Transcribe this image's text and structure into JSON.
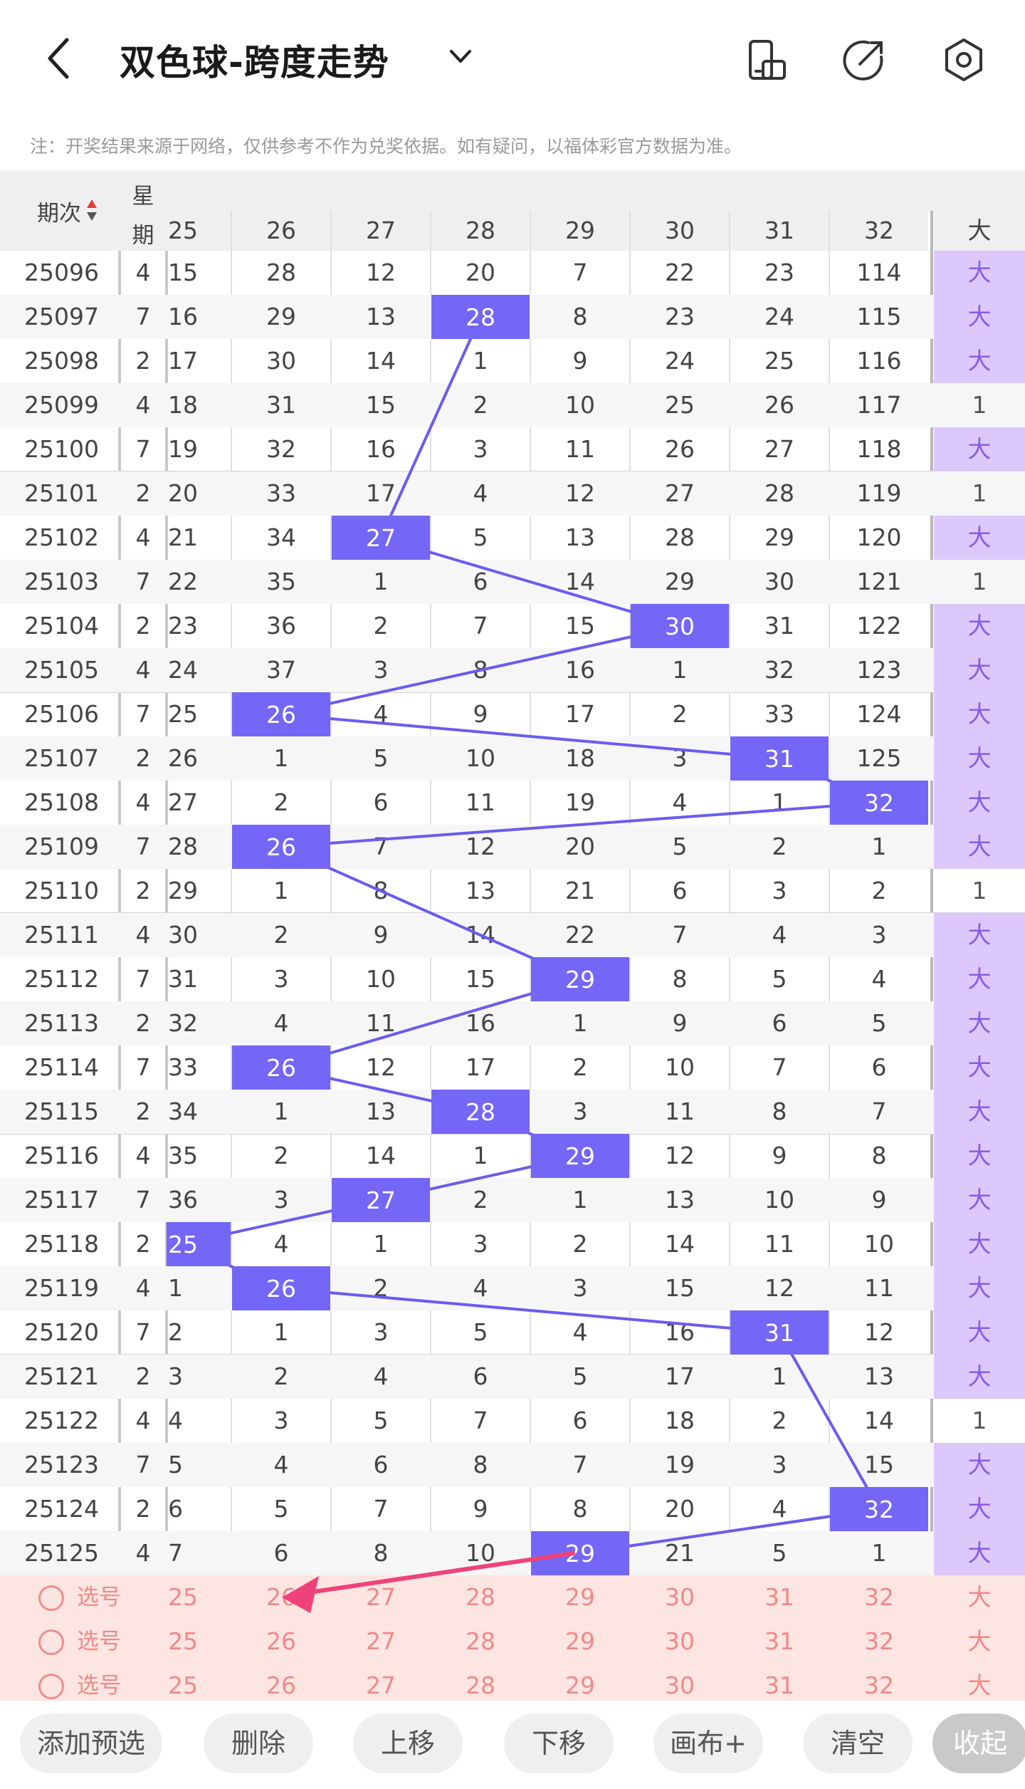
{
  "header": {
    "title": "双色球-跨度走势",
    "note": "注：开奖结果来源于网络，仅供参考不作为兑奖依据。如有疑问，以福体彩官方数据为准。"
  },
  "table": {
    "issue_header": "期次",
    "week_header_1": "星",
    "week_header_2": "期",
    "span_columns": [
      "25",
      "26",
      "27",
      "28",
      "29",
      "30",
      "31",
      "32"
    ],
    "big_header": "大",
    "big_label": "大",
    "rows": [
      {
        "issue": "25096",
        "week": "4",
        "cells": [
          "15",
          "28",
          "12",
          "20",
          "7",
          "22",
          "23",
          "114"
        ],
        "hit": null,
        "big": "大"
      },
      {
        "issue": "25097",
        "week": "7",
        "cells": [
          "16",
          "29",
          "13",
          "28",
          "8",
          "23",
          "24",
          "115"
        ],
        "hit": 3,
        "big": "大"
      },
      {
        "issue": "25098",
        "week": "2",
        "cells": [
          "17",
          "30",
          "14",
          "1",
          "9",
          "24",
          "25",
          "116"
        ],
        "hit": null,
        "big": "大"
      },
      {
        "issue": "25099",
        "week": "4",
        "cells": [
          "18",
          "31",
          "15",
          "2",
          "10",
          "25",
          "26",
          "117"
        ],
        "hit": null,
        "big": "1"
      },
      {
        "issue": "25100",
        "week": "7",
        "cells": [
          "19",
          "32",
          "16",
          "3",
          "11",
          "26",
          "27",
          "118"
        ],
        "hit": null,
        "big": "大"
      },
      {
        "issue": "25101",
        "week": "2",
        "cells": [
          "20",
          "33",
          "17",
          "4",
          "12",
          "27",
          "28",
          "119"
        ],
        "hit": null,
        "big": "1"
      },
      {
        "issue": "25102",
        "week": "4",
        "cells": [
          "21",
          "34",
          "27",
          "5",
          "13",
          "28",
          "29",
          "120"
        ],
        "hit": 2,
        "big": "大"
      },
      {
        "issue": "25103",
        "week": "7",
        "cells": [
          "22",
          "35",
          "1",
          "6",
          "14",
          "29",
          "30",
          "121"
        ],
        "hit": null,
        "big": "1"
      },
      {
        "issue": "25104",
        "week": "2",
        "cells": [
          "23",
          "36",
          "2",
          "7",
          "15",
          "30",
          "31",
          "122"
        ],
        "hit": 5,
        "big": "大"
      },
      {
        "issue": "25105",
        "week": "4",
        "cells": [
          "24",
          "37",
          "3",
          "8",
          "16",
          "1",
          "32",
          "123"
        ],
        "hit": null,
        "big": "大"
      },
      {
        "issue": "25106",
        "week": "7",
        "cells": [
          "25",
          "26",
          "4",
          "9",
          "17",
          "2",
          "33",
          "124"
        ],
        "hit": 1,
        "big": "大"
      },
      {
        "issue": "25107",
        "week": "2",
        "cells": [
          "26",
          "1",
          "5",
          "10",
          "18",
          "3",
          "31",
          "125"
        ],
        "hit": 6,
        "big": "大"
      },
      {
        "issue": "25108",
        "week": "4",
        "cells": [
          "27",
          "2",
          "6",
          "11",
          "19",
          "4",
          "1",
          "32"
        ],
        "hit": 7,
        "big": "大"
      },
      {
        "issue": "25109",
        "week": "7",
        "cells": [
          "28",
          "26",
          "7",
          "12",
          "20",
          "5",
          "2",
          "1"
        ],
        "hit": 1,
        "big": "大"
      },
      {
        "issue": "25110",
        "week": "2",
        "cells": [
          "29",
          "1",
          "8",
          "13",
          "21",
          "6",
          "3",
          "2"
        ],
        "hit": null,
        "big": "1"
      },
      {
        "issue": "25111",
        "week": "4",
        "cells": [
          "30",
          "2",
          "9",
          "14",
          "22",
          "7",
          "4",
          "3"
        ],
        "hit": null,
        "big": "大"
      },
      {
        "issue": "25112",
        "week": "7",
        "cells": [
          "31",
          "3",
          "10",
          "15",
          "29",
          "8",
          "5",
          "4"
        ],
        "hit": 4,
        "big": "大"
      },
      {
        "issue": "25113",
        "week": "2",
        "cells": [
          "32",
          "4",
          "11",
          "16",
          "1",
          "9",
          "6",
          "5"
        ],
        "hit": null,
        "big": "大"
      },
      {
        "issue": "25114",
        "week": "7",
        "cells": [
          "33",
          "26",
          "12",
          "17",
          "2",
          "10",
          "7",
          "6"
        ],
        "hit": 1,
        "big": "大"
      },
      {
        "issue": "25115",
        "week": "2",
        "cells": [
          "34",
          "1",
          "13",
          "28",
          "3",
          "11",
          "8",
          "7"
        ],
        "hit": 3,
        "big": "大"
      },
      {
        "issue": "25116",
        "week": "4",
        "cells": [
          "35",
          "2",
          "14",
          "1",
          "29",
          "12",
          "9",
          "8"
        ],
        "hit": 4,
        "big": "大"
      },
      {
        "issue": "25117",
        "week": "7",
        "cells": [
          "36",
          "3",
          "27",
          "2",
          "1",
          "13",
          "10",
          "9"
        ],
        "hit": 2,
        "big": "大"
      },
      {
        "issue": "25118",
        "week": "2",
        "cells": [
          "25",
          "4",
          "1",
          "3",
          "2",
          "14",
          "11",
          "10"
        ],
        "hit": 0,
        "big": "大"
      },
      {
        "issue": "25119",
        "week": "4",
        "cells": [
          "1",
          "26",
          "2",
          "4",
          "3",
          "15",
          "12",
          "11"
        ],
        "hit": 1,
        "big": "大"
      },
      {
        "issue": "25120",
        "week": "7",
        "cells": [
          "2",
          "1",
          "3",
          "5",
          "4",
          "16",
          "31",
          "12"
        ],
        "hit": 6,
        "big": "大"
      },
      {
        "issue": "25121",
        "week": "2",
        "cells": [
          "3",
          "2",
          "4",
          "6",
          "5",
          "17",
          "1",
          "13"
        ],
        "hit": null,
        "big": "大"
      },
      {
        "issue": "25122",
        "week": "4",
        "cells": [
          "4",
          "3",
          "5",
          "7",
          "6",
          "18",
          "2",
          "14"
        ],
        "hit": null,
        "big": "1"
      },
      {
        "issue": "25123",
        "week": "7",
        "cells": [
          "5",
          "4",
          "6",
          "8",
          "7",
          "19",
          "3",
          "15"
        ],
        "hit": null,
        "big": "大"
      },
      {
        "issue": "25124",
        "week": "2",
        "cells": [
          "6",
          "5",
          "7",
          "9",
          "8",
          "20",
          "4",
          "32"
        ],
        "hit": 7,
        "big": "大"
      },
      {
        "issue": "25125",
        "week": "4",
        "cells": [
          "7",
          "6",
          "8",
          "10",
          "29",
          "21",
          "5",
          "1"
        ],
        "hit": 4,
        "big": "大"
      }
    ],
    "pick_rows": [
      {
        "label": "选号",
        "cells": [
          "25",
          "26",
          "27",
          "28",
          "29",
          "30",
          "31",
          "32"
        ],
        "big": "大"
      },
      {
        "label": "选号",
        "cells": [
          "25",
          "26",
          "27",
          "28",
          "29",
          "30",
          "31",
          "32"
        ],
        "big": "大"
      },
      {
        "label": "选号",
        "cells": [
          "25",
          "26",
          "27",
          "28",
          "29",
          "30",
          "31",
          "32"
        ],
        "big": "大"
      }
    ]
  },
  "toolbar": {
    "buttons": [
      "添加预选",
      "删除",
      "上移",
      "下移",
      "画布+",
      "清空"
    ],
    "collapse": "收起"
  },
  "colors": {
    "highlight": "#7466f6",
    "line": "#6a5cf0",
    "big_bg": "#dcc8fb",
    "pick_bg": "#fde5e1",
    "arrow": "#f0427a"
  }
}
